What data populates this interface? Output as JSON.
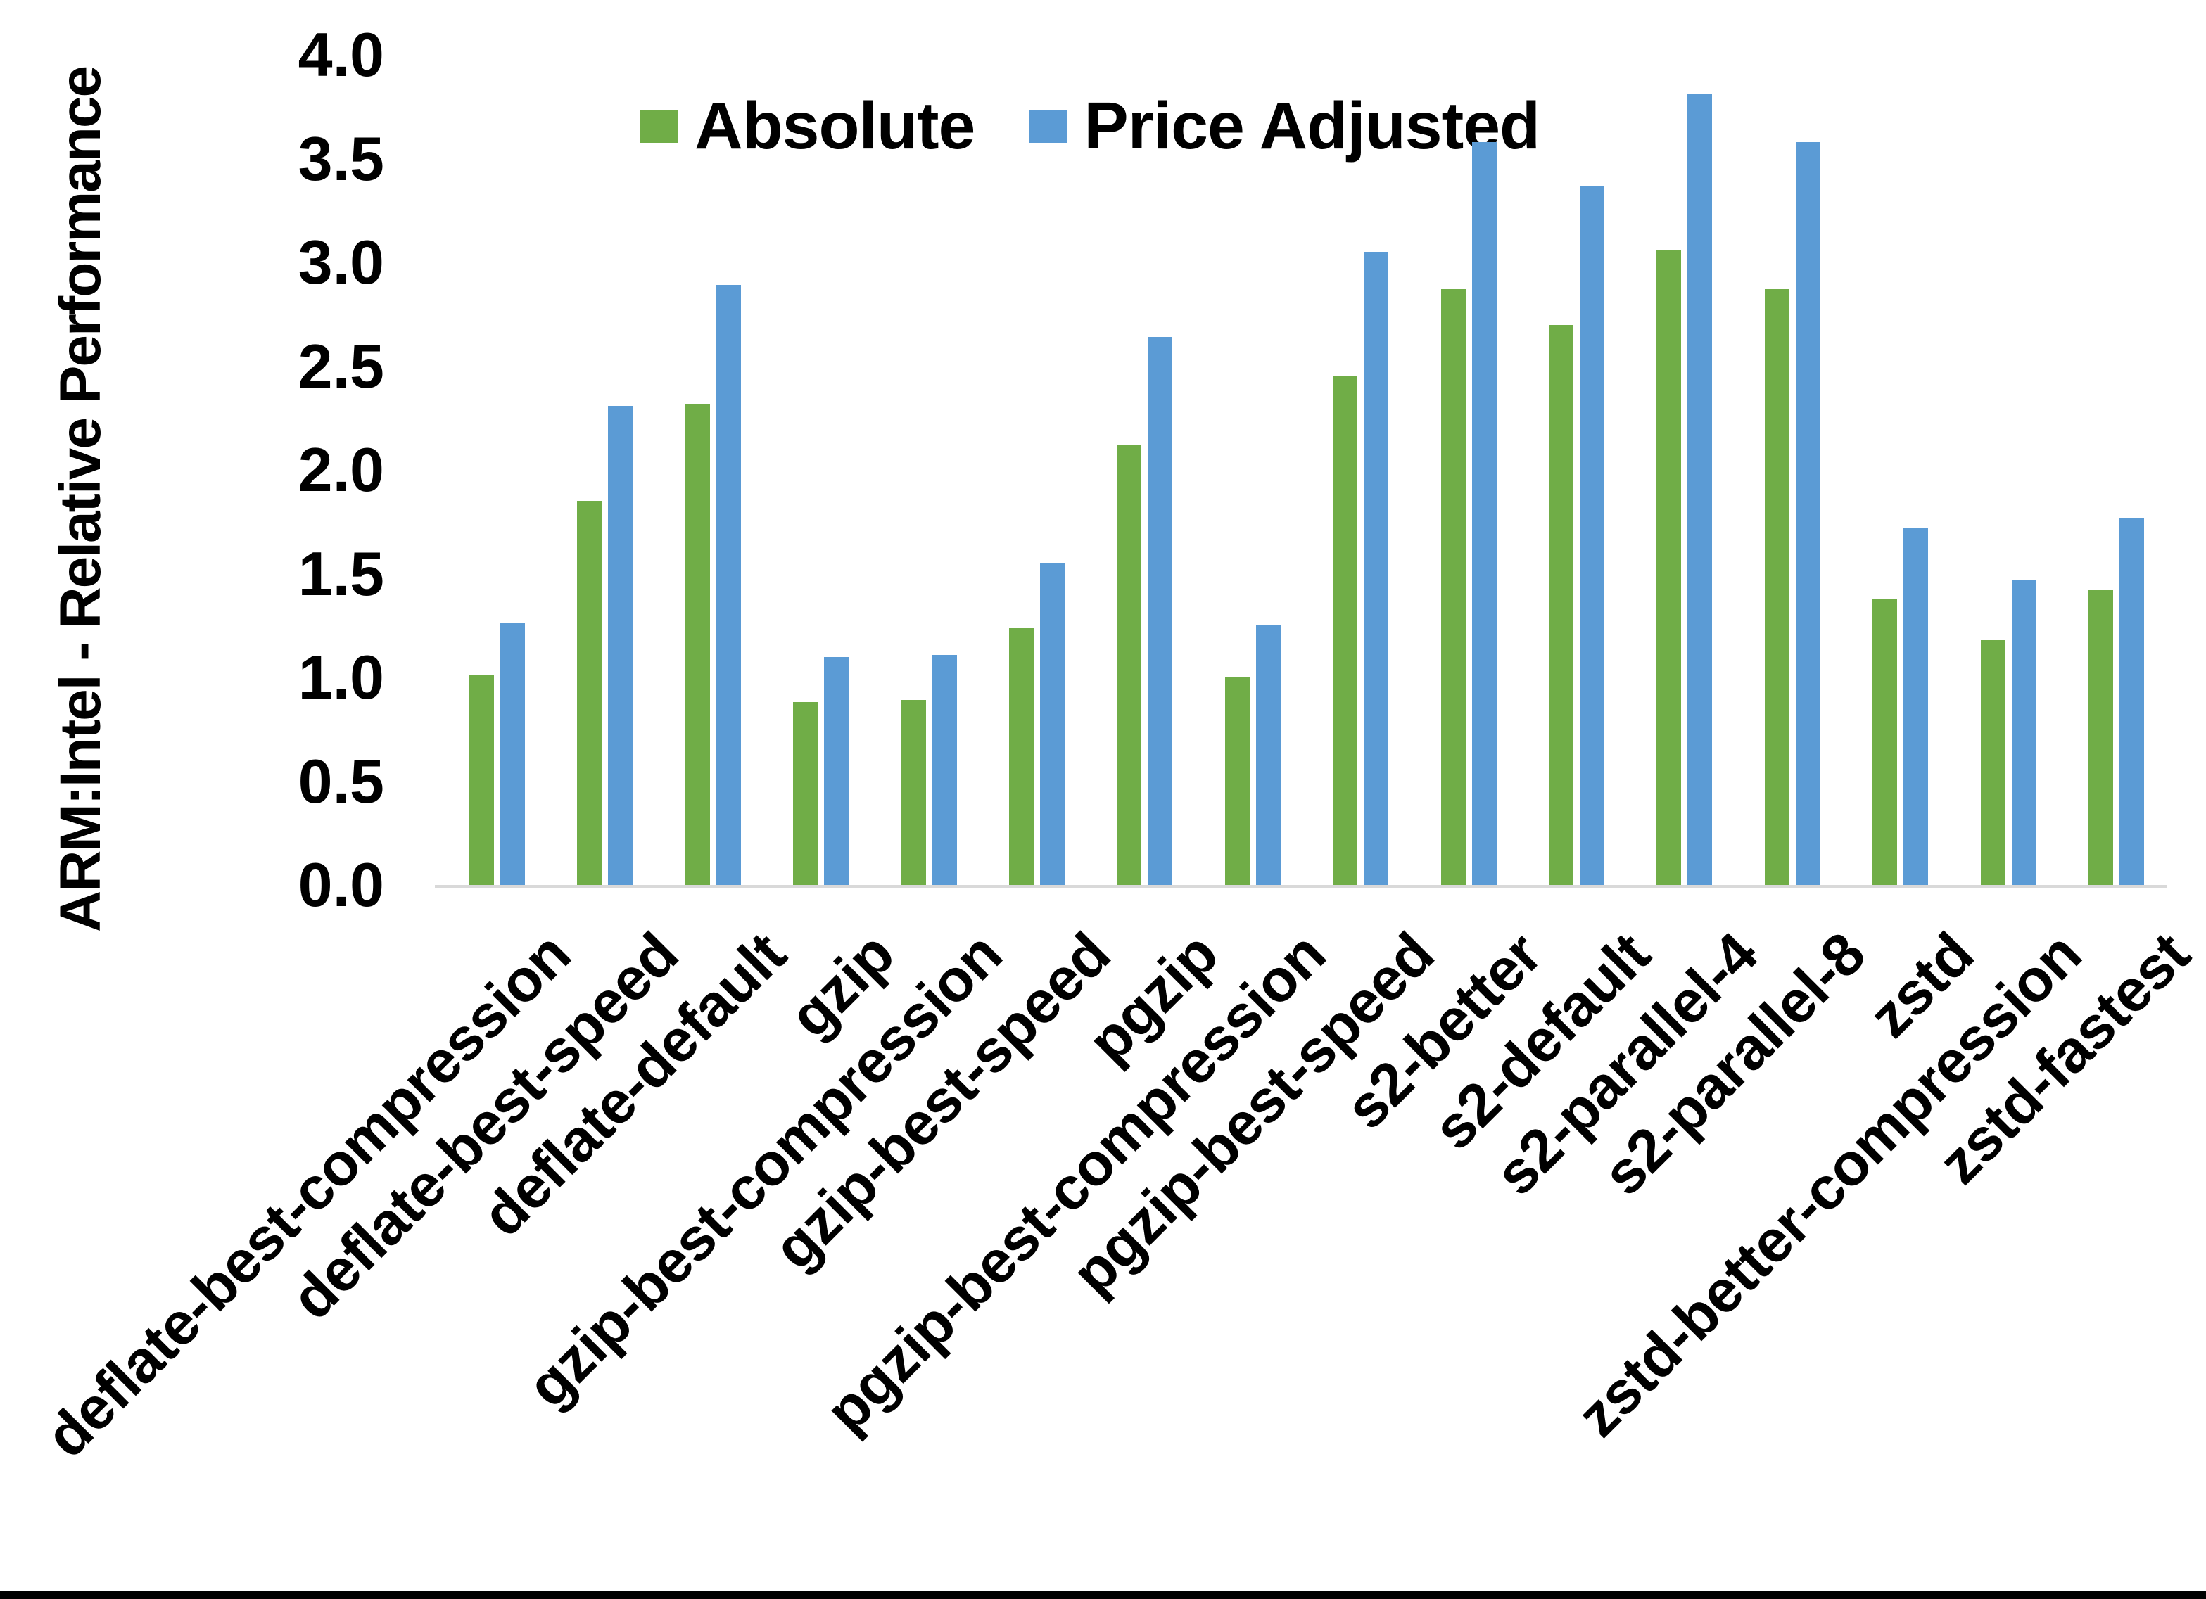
{
  "page": {
    "background_color": "#ffffff",
    "bottom_border_color": "#000000"
  },
  "chart_data": {
    "type": "bar",
    "title": "",
    "xlabel": "",
    "ylabel": "ARM:Intel - Relative Performance",
    "ylim": [
      0.0,
      4.0
    ],
    "ytick_step": 0.5,
    "ytick_labels": [
      "0.0",
      "0.5",
      "1.0",
      "1.5",
      "2.0",
      "2.5",
      "3.0",
      "3.5",
      "4.0"
    ],
    "grid": false,
    "legend_position": "top-center",
    "axis_line_color": "#d9d9d9",
    "text_color": "#000000",
    "categories": [
      "deflate-best-compression",
      "deflate-best-speed",
      "deflate-default",
      "gzip",
      "gzip-best-compression",
      "gzip-best-speed",
      "pgzip",
      "pgzip-best-compression",
      "pgzip-best-speed",
      "s2-better",
      "s2-default",
      "s2-parallel-4",
      "s2-parallel-8",
      "zstd",
      "zstd-better-compression",
      "zstd-fastest"
    ],
    "series": [
      {
        "name": "Absolute",
        "color": "#70ad47",
        "values": [
          1.01,
          1.85,
          2.32,
          0.88,
          0.89,
          1.24,
          2.12,
          1.0,
          2.45,
          2.87,
          2.7,
          3.06,
          2.87,
          1.38,
          1.18,
          1.42
        ]
      },
      {
        "name": "Price Adjusted",
        "color": "#5b9bd5",
        "values": [
          1.26,
          2.31,
          2.89,
          1.1,
          1.11,
          1.55,
          2.64,
          1.25,
          3.05,
          3.58,
          3.37,
          3.81,
          3.58,
          1.72,
          1.47,
          1.77
        ]
      }
    ]
  }
}
